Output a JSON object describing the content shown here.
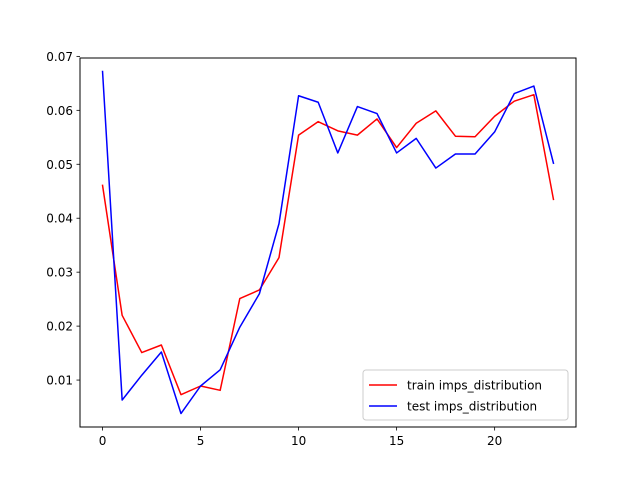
{
  "chart_data": {
    "type": "line",
    "title": "",
    "xlabel": "",
    "ylabel": "",
    "xlim": [
      -1.15,
      24.15
    ],
    "ylim": [
      0.0013,
      0.0697
    ],
    "xticks": [
      0,
      5,
      10,
      15,
      20
    ],
    "xtick_labels": [
      "0",
      "5",
      "10",
      "15",
      "20"
    ],
    "yticks": [
      0.01,
      0.02,
      0.03,
      0.04,
      0.05,
      0.06,
      0.07
    ],
    "ytick_labels": [
      "0.01",
      "0.02",
      "0.03",
      "0.04",
      "0.05",
      "0.06",
      "0.07"
    ],
    "grid": false,
    "legend_position": "lower-right",
    "x": [
      0,
      1,
      2,
      3,
      4,
      5,
      6,
      7,
      8,
      9,
      10,
      11,
      12,
      13,
      14,
      15,
      16,
      17,
      18,
      19,
      20,
      21,
      22,
      23
    ],
    "series": [
      {
        "name": "train imps_distribution",
        "color": "#ff0000",
        "values": [
          0.0461,
          0.022,
          0.0151,
          0.0165,
          0.0073,
          0.0089,
          0.0081,
          0.0251,
          0.0267,
          0.0327,
          0.0554,
          0.0579,
          0.0562,
          0.0554,
          0.0584,
          0.0531,
          0.0576,
          0.0599,
          0.0552,
          0.0551,
          0.0589,
          0.0617,
          0.0629,
          0.0435
        ]
      },
      {
        "name": "test imps_distribution",
        "color": "#0000ff",
        "values": [
          0.0672,
          0.0063,
          0.0109,
          0.0152,
          0.0038,
          0.0089,
          0.0119,
          0.0198,
          0.026,
          0.039,
          0.0627,
          0.0615,
          0.0521,
          0.0607,
          0.0594,
          0.0521,
          0.0548,
          0.0493,
          0.0519,
          0.0519,
          0.056,
          0.0631,
          0.0645,
          0.0502
        ]
      }
    ]
  }
}
